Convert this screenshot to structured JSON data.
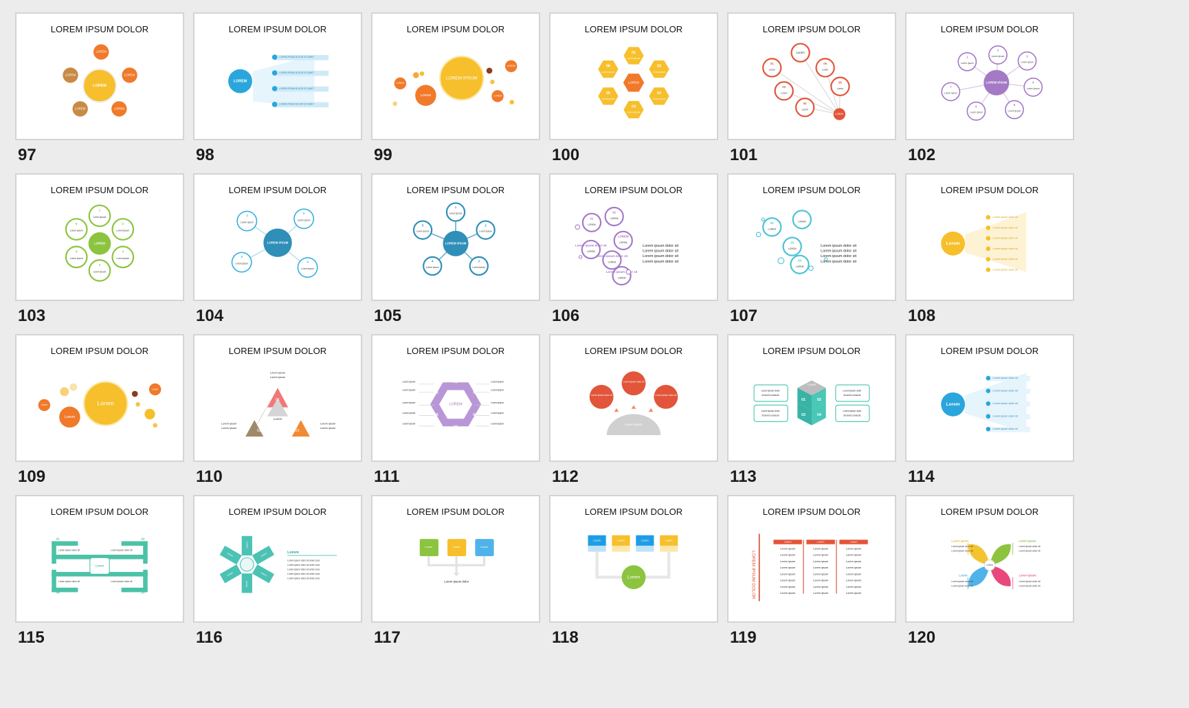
{
  "slides": [
    {
      "number": "97",
      "title": "LOREM IPSUM DOLOR",
      "labels": [
        "LOREM",
        "LOREM",
        "LOREM",
        "LOREM",
        "LOREM",
        "LOREM"
      ]
    },
    {
      "number": "98",
      "title": "LOREM IPSUM DOLOR",
      "labels": [
        "LOREM",
        "LOREM IPSUM DOLOR SIT AMET",
        "LOREM IPSUM DOLOR SIT AMET",
        "LOREM IPSUM DOLOR SIT AMET",
        "LOREM IPSUM DOLOR SIT AMET"
      ]
    },
    {
      "number": "99",
      "title": "LOREM IPSUM DOLOR",
      "labels": [
        "LOREM IPSUM",
        "LOREM",
        "LOREM",
        "LOREM",
        "LOREM"
      ]
    },
    {
      "number": "100",
      "title": "LOREM IPSUM DOLOR",
      "labels": [
        "LOREM",
        "01",
        "02",
        "03",
        "04",
        "05",
        "06",
        "Lorem ipsum"
      ]
    },
    {
      "number": "101",
      "title": "LOREM IPSUM DOLOR",
      "labels": [
        "LOREM",
        "01",
        "02",
        "03",
        "04",
        "05",
        "06",
        "Lorem"
      ]
    },
    {
      "number": "102",
      "title": "LOREM IPSUM DOLOR",
      "labels": [
        "LOREM IPSUM",
        "1",
        "2",
        "3",
        "4",
        "5",
        "6",
        "7",
        "Lorem ipsum"
      ]
    },
    {
      "number": "103",
      "title": "LOREM IPSUM DOLOR",
      "labels": [
        "LOREM",
        "1",
        "2",
        "3",
        "4",
        "5",
        "6",
        "Lorem ipsum"
      ]
    },
    {
      "number": "104",
      "title": "LOREM IPSUM DOLOR",
      "labels": [
        "LOREM IPSUM",
        "1",
        "2",
        "3",
        "4",
        "Lorem ipsum"
      ]
    },
    {
      "number": "105",
      "title": "LOREM IPSUM DOLOR",
      "labels": [
        "LOREM IPSUM",
        "1",
        "2",
        "3",
        "4",
        "5",
        "6",
        "Lorem ipsum"
      ]
    },
    {
      "number": "106",
      "title": "LOREM IPSUM DOLOR",
      "labels": [
        "Lorem ipsum dolor sit",
        "Lorem ipsum dolor sit",
        "Lorem ipsum dolor sit",
        "Lorem ipsum dolor sit",
        "LOREM",
        "01",
        "02",
        "03",
        "04",
        "05",
        "06"
      ]
    },
    {
      "number": "107",
      "title": "LOREM IPSUM DOLOR",
      "labels": [
        "Lorem ipsum dolor sit",
        "Lorem ipsum dolor sit",
        "Lorem ipsum dolor sit",
        "Lorem ipsum dolor sit",
        "LOREM",
        "01",
        "02",
        "03",
        "04"
      ]
    },
    {
      "number": "108",
      "title": "LOREM IPSUM DOLOR",
      "labels": [
        "Lorem",
        "Lorem ipsum dolor sit"
      ]
    },
    {
      "number": "109",
      "title": "LOREM IPSUM DOLOR",
      "labels": [
        "Lorem",
        "Lorem",
        "Lorem",
        "Lorem"
      ]
    },
    {
      "number": "110",
      "title": "LOREM IPSUM DOLOR",
      "labels": [
        "Lorem ipsum",
        "Lorem ipsum",
        "01",
        "02",
        "03",
        "Lorem",
        "Lorem ipsum",
        "Lorem ipsum"
      ]
    },
    {
      "number": "111",
      "title": "LOREM IPSUM DOLOR",
      "labels": [
        "LOREM",
        "01",
        "02",
        "03",
        "04",
        "05",
        "06",
        "Lorem ipsum"
      ]
    },
    {
      "number": "112",
      "title": "LOREM IPSUM DOLOR",
      "labels": [
        "Lorem ipsum dolor sit",
        "Lorem ipsum"
      ]
    },
    {
      "number": "113",
      "title": "LOREM IPSUM DOLOR",
      "labels": [
        "Lorem",
        "01",
        "02",
        "03",
        "04",
        "Lorem ipsum dolor",
        "sit amet consecte"
      ]
    },
    {
      "number": "114",
      "title": "LOREM IPSUM DOLOR",
      "labels": [
        "Lorem",
        "Lorem ipsum dolor sit"
      ]
    },
    {
      "number": "115",
      "title": "LOREM IPSUM DOLOR",
      "labels": [
        "Lorem",
        "01",
        "02",
        "03",
        "04",
        "Lorem ipsum dolor sit"
      ]
    },
    {
      "number": "116",
      "title": "LOREM IPSUM DOLOR",
      "labels": [
        "Lorem",
        "Lorem ipsum dolor sit amet cons",
        "Lorem"
      ]
    },
    {
      "number": "117",
      "title": "LOREM IPSUM DOLOR",
      "labels": [
        "Lorem",
        "Lorem",
        "Lorem",
        "Lorem ipsum dolor"
      ]
    },
    {
      "number": "118",
      "title": "LOREM IPSUM DOLOR",
      "labels": [
        "Lorem",
        "Lorem",
        "Lorem",
        "Lorem",
        "Lorem"
      ]
    },
    {
      "number": "119",
      "title": "LOREM IPSUM DOLOR",
      "labels": [
        "LOREM IPSUM DOLOR",
        "Lorem",
        "Lorem ipsum"
      ]
    },
    {
      "number": "120",
      "title": "LOREM IPSUM DOLOR",
      "labels": [
        "Lorem",
        "Lorem ipsum",
        "Lorem ipsum dolor sit",
        "Lorem ipsum dolor sit"
      ]
    }
  ],
  "colors": {
    "background": "#ececec",
    "orange": "#f07a2a",
    "yellow": "#f6bf2b",
    "blue": "#2aa6dd",
    "red": "#e2553a",
    "purple": "#a47ac6",
    "green": "#8cc43f",
    "teal": "#2f8fb8",
    "mint": "#45c4ad",
    "gray": "#c8c8c8"
  }
}
